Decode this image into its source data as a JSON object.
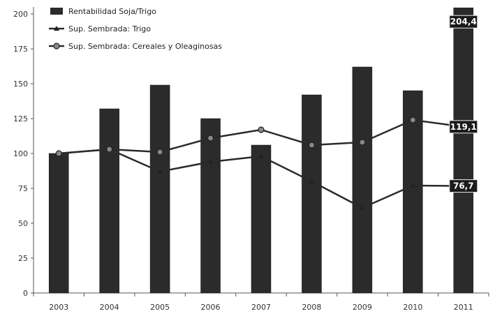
{
  "chart_data": {
    "type": "bar",
    "categories": [
      "2003",
      "2004",
      "2005",
      "2006",
      "2007",
      "2008",
      "2009",
      "2010",
      "2011"
    ],
    "ylim": [
      0,
      205
    ],
    "yticks": [
      0,
      25,
      50,
      75,
      100,
      125,
      150,
      175,
      200
    ],
    "grid": false,
    "legend_position": "top-left",
    "series": [
      {
        "name": "Rentabilidad Soja/Trigo",
        "type": "bar",
        "color": "#2b2b2b",
        "values": [
          100,
          132,
          149,
          125,
          106,
          142,
          162,
          145,
          204.4
        ]
      },
      {
        "name": "Sup. Sembrada: Trigo",
        "type": "line",
        "marker": "triangle",
        "color": "#2b2b2b",
        "values": [
          100,
          103,
          87,
          94,
          98,
          80,
          61,
          77,
          76.7
        ]
      },
      {
        "name": "Sup. Sembrada: Cereales y Oleaginosas",
        "type": "line",
        "marker": "circle",
        "color": "#2b2b2b",
        "values": [
          100,
          103,
          101,
          111,
          117,
          106,
          108,
          124,
          119.1
        ]
      }
    ],
    "data_labels": [
      {
        "text": "204,4",
        "series": 0,
        "index": 8
      },
      {
        "text": "119,1",
        "series": 2,
        "index": 8
      },
      {
        "text": "76,7",
        "series": 1,
        "index": 8
      }
    ]
  }
}
